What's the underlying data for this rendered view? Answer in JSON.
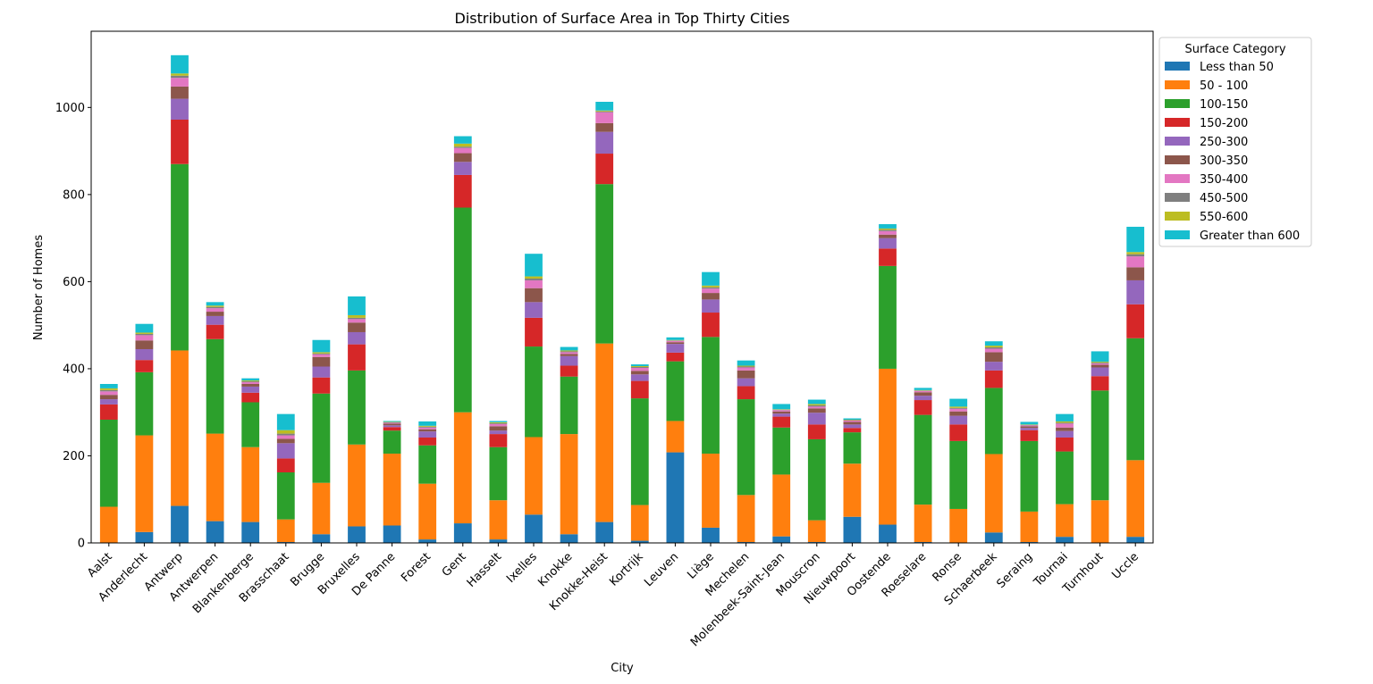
{
  "chart_data": {
    "type": "bar",
    "stacked": true,
    "title": "Distribution of Surface Area in Top Thirty Cities",
    "xlabel": "City",
    "ylabel": "Number of Homes",
    "ylim": [
      0,
      1175
    ],
    "yticks": [
      0,
      200,
      400,
      600,
      800,
      1000
    ],
    "grid": false,
    "legend": {
      "title": "Surface Category",
      "placement": "upper-right-outside"
    },
    "categories": [
      "Aalst",
      "Anderlecht",
      "Antwerp",
      "Antwerpen",
      "Blankenberge",
      "Brasschaat",
      "Brugge",
      "Bruxelles",
      "De Panne",
      "Forest",
      "Gent",
      "Hasselt",
      "Ixelles",
      "Knokke",
      "Knokke-Heist",
      "Kortrijk",
      "Leuven",
      "Liège",
      "Mechelen",
      "Molenbeek-Saint-Jean",
      "Mouscron",
      "Nieuwpoort",
      "Oostende",
      "Roeselare",
      "Ronse",
      "Schaerbeek",
      "Seraing",
      "Tournai",
      "Turnhout",
      "Uccle"
    ],
    "series": [
      {
        "name": "Less than 50",
        "color": "#1f77b4",
        "values": [
          0,
          25,
          85,
          50,
          48,
          2,
          20,
          38,
          40,
          8,
          45,
          8,
          65,
          20,
          48,
          5,
          208,
          35,
          2,
          15,
          2,
          60,
          42,
          2,
          0,
          24,
          2,
          14,
          0,
          14
        ]
      },
      {
        "name": "50 - 100",
        "color": "#ff7f0e",
        "values": [
          83,
          222,
          357,
          201,
          172,
          52,
          118,
          188,
          165,
          128,
          255,
          90,
          178,
          230,
          410,
          82,
          72,
          170,
          108,
          142,
          50,
          122,
          358,
          86,
          78,
          180,
          70,
          75,
          98,
          176
        ]
      },
      {
        "name": "100-150",
        "color": "#2ca02c",
        "values": [
          200,
          145,
          428,
          217,
          103,
          108,
          205,
          170,
          53,
          88,
          470,
          122,
          208,
          132,
          366,
          245,
          137,
          268,
          220,
          108,
          186,
          72,
          236,
          206,
          156,
          152,
          162,
          121,
          252,
          280
        ]
      },
      {
        "name": "150-200",
        "color": "#d62728",
        "values": [
          35,
          28,
          102,
          33,
          22,
          32,
          37,
          60,
          8,
          18,
          75,
          30,
          66,
          25,
          70,
          40,
          20,
          56,
          30,
          25,
          34,
          10,
          40,
          34,
          38,
          40,
          25,
          32,
          33,
          78
        ]
      },
      {
        "name": "250-300",
        "color": "#9467bd",
        "values": [
          12,
          25,
          48,
          20,
          14,
          35,
          25,
          28,
          4,
          14,
          30,
          8,
          36,
          22,
          50,
          15,
          20,
          30,
          18,
          7,
          27,
          8,
          24,
          10,
          20,
          20,
          5,
          15,
          20,
          55
        ]
      },
      {
        "name": "300-350",
        "color": "#8c564b",
        "values": [
          10,
          20,
          28,
          10,
          6,
          10,
          22,
          22,
          4,
          5,
          20,
          10,
          32,
          5,
          20,
          8,
          4,
          15,
          18,
          5,
          10,
          6,
          8,
          8,
          10,
          22,
          4,
          8,
          6,
          30
        ]
      },
      {
        "name": "350-400",
        "color": "#e377c2",
        "values": [
          8,
          12,
          20,
          8,
          4,
          8,
          6,
          8,
          2,
          4,
          12,
          5,
          18,
          4,
          25,
          7,
          3,
          10,
          7,
          3,
          4,
          3,
          8,
          3,
          6,
          8,
          2,
          9,
          3,
          25
        ]
      },
      {
        "name": "450-500",
        "color": "#7f7f7f",
        "values": [
          3,
          3,
          5,
          3,
          2,
          4,
          2,
          3,
          1,
          2,
          3,
          2,
          4,
          2,
          2,
          2,
          1,
          3,
          2,
          1,
          3,
          1,
          3,
          1,
          2,
          3,
          1,
          2,
          2,
          5
        ]
      },
      {
        "name": "550-600",
        "color": "#bcbd22",
        "values": [
          4,
          3,
          5,
          3,
          2,
          8,
          3,
          6,
          1,
          2,
          7,
          2,
          5,
          2,
          2,
          2,
          1,
          4,
          2,
          1,
          3,
          1,
          3,
          1,
          3,
          4,
          1,
          3,
          2,
          5
        ]
      },
      {
        "name": "Greater than 600",
        "color": "#17becf",
        "values": [
          10,
          20,
          42,
          8,
          5,
          37,
          28,
          43,
          2,
          10,
          17,
          3,
          52,
          8,
          20,
          4,
          6,
          31,
          12,
          12,
          10,
          3,
          10,
          5,
          18,
          10,
          6,
          17,
          24,
          58
        ]
      }
    ]
  }
}
